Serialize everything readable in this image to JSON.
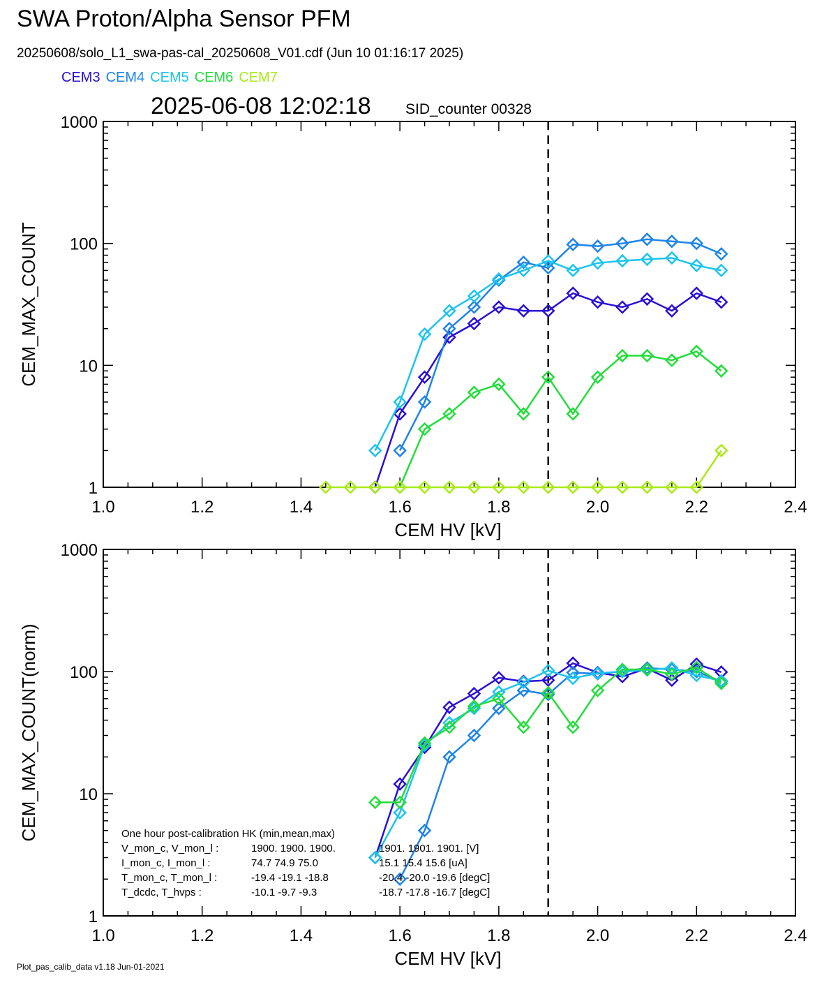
{
  "header": {
    "title": "SWA Proton/Alpha Sensor PFM",
    "file_info": "20250608/solo_L1_swa-pas-cal_20250608_V01.cdf  (Jun 10 01:16:17 2025)",
    "timestamp": "2025-06-08 12:02:18",
    "sid_counter": "SID_counter 00328"
  },
  "legend": [
    {
      "label": "CEM3",
      "color": "#2a0fd6"
    },
    {
      "label": "CEM4",
      "color": "#1f84e8"
    },
    {
      "label": "CEM5",
      "color": "#1cc4ee"
    },
    {
      "label": "CEM6",
      "color": "#22dd3a"
    },
    {
      "label": "CEM7",
      "color": "#a8ea16"
    }
  ],
  "footer": "Plot_pas_calib_data v1.18 Jun-01-2021",
  "chart_data": [
    {
      "type": "line",
      "scale_y": "log",
      "xlabel": "CEM HV [kV]",
      "ylabel": "CEM_MAX_COUNT",
      "xlim": [
        1.0,
        2.4
      ],
      "ylim": [
        1,
        1000
      ],
      "x_ticks": [
        "1.0",
        "1.2",
        "1.4",
        "1.6",
        "1.8",
        "2.0",
        "2.2",
        "2.4"
      ],
      "y_ticks": [
        "1",
        "10",
        "100",
        "1000"
      ],
      "marker": "diamond",
      "vline_x": 1.9,
      "vline_style": "dashed",
      "series": [
        {
          "name": "CEM3",
          "color": "#2a0fd6",
          "points": [
            [
              1.55,
              1
            ],
            [
              1.6,
              4
            ],
            [
              1.65,
              8
            ],
            [
              1.7,
              17
            ],
            [
              1.75,
              22
            ],
            [
              1.8,
              30
            ],
            [
              1.85,
              28
            ],
            [
              1.9,
              28
            ],
            [
              1.95,
              39
            ],
            [
              2.0,
              33
            ],
            [
              2.05,
              30
            ],
            [
              2.1,
              35
            ],
            [
              2.15,
              28
            ],
            [
              2.2,
              39
            ],
            [
              2.25,
              33
            ]
          ]
        },
        {
          "name": "CEM4",
          "color": "#1f84e8",
          "points": [
            [
              1.6,
              2
            ],
            [
              1.65,
              5
            ],
            [
              1.7,
              20
            ],
            [
              1.75,
              30
            ],
            [
              1.8,
              50
            ],
            [
              1.85,
              70
            ],
            [
              1.9,
              63
            ],
            [
              1.95,
              98
            ],
            [
              2.0,
              95
            ],
            [
              2.05,
              100
            ],
            [
              2.1,
              108
            ],
            [
              2.15,
              104
            ],
            [
              2.2,
              100
            ],
            [
              2.25,
              82
            ]
          ]
        },
        {
          "name": "CEM5",
          "color": "#1cc4ee",
          "points": [
            [
              1.55,
              2
            ],
            [
              1.6,
              5
            ],
            [
              1.65,
              18
            ],
            [
              1.7,
              28
            ],
            [
              1.75,
              37
            ],
            [
              1.8,
              51
            ],
            [
              1.85,
              60
            ],
            [
              1.9,
              72
            ],
            [
              1.95,
              60
            ],
            [
              2.0,
              69
            ],
            [
              2.05,
              72
            ],
            [
              2.1,
              74
            ],
            [
              2.15,
              76
            ],
            [
              2.2,
              66
            ],
            [
              2.25,
              60
            ]
          ]
        },
        {
          "name": "CEM6",
          "color": "#22dd3a",
          "points": [
            [
              1.6,
              1
            ],
            [
              1.65,
              3
            ],
            [
              1.7,
              4
            ],
            [
              1.75,
              6
            ],
            [
              1.8,
              7
            ],
            [
              1.85,
              4
            ],
            [
              1.9,
              8
            ],
            [
              1.95,
              4
            ],
            [
              2.0,
              8
            ],
            [
              2.05,
              12
            ],
            [
              2.1,
              12
            ],
            [
              2.15,
              11
            ],
            [
              2.2,
              13
            ],
            [
              2.25,
              9
            ]
          ]
        },
        {
          "name": "CEM7",
          "color": "#a8ea16",
          "points": [
            [
              1.45,
              1
            ],
            [
              1.5,
              1
            ],
            [
              1.55,
              1
            ],
            [
              1.6,
              1
            ],
            [
              1.65,
              1
            ],
            [
              1.7,
              1
            ],
            [
              1.75,
              1
            ],
            [
              1.8,
              1
            ],
            [
              1.85,
              1
            ],
            [
              1.9,
              1
            ],
            [
              1.95,
              1
            ],
            [
              2.0,
              1
            ],
            [
              2.05,
              1
            ],
            [
              2.1,
              1
            ],
            [
              2.15,
              1
            ],
            [
              2.2,
              1
            ],
            [
              2.25,
              2
            ]
          ]
        }
      ]
    },
    {
      "type": "line",
      "scale_y": "log",
      "xlabel": "CEM HV [kV]",
      "ylabel": "CEM_MAX_COUNT(norm)",
      "xlim": [
        1.0,
        2.4
      ],
      "ylim": [
        1,
        1000
      ],
      "x_ticks": [
        "1.0",
        "1.2",
        "1.4",
        "1.6",
        "1.8",
        "2.0",
        "2.2",
        "2.4"
      ],
      "y_ticks": [
        "1",
        "10",
        "100",
        "1000"
      ],
      "marker": "diamond",
      "vline_x": 1.9,
      "vline_style": "dashed",
      "series": [
        {
          "name": "CEM3",
          "color": "#2a0fd6",
          "points": [
            [
              1.55,
              3
            ],
            [
              1.6,
              12
            ],
            [
              1.65,
              24
            ],
            [
              1.7,
              51
            ],
            [
              1.75,
              66
            ],
            [
              1.8,
              89
            ],
            [
              1.85,
              83
            ],
            [
              1.9,
              85
            ],
            [
              1.95,
              117
            ],
            [
              2.0,
              98
            ],
            [
              2.05,
              91
            ],
            [
              2.1,
              106
            ],
            [
              2.15,
              85
            ],
            [
              2.2,
              115
            ],
            [
              2.25,
              99
            ]
          ]
        },
        {
          "name": "CEM4",
          "color": "#1f84e8",
          "points": [
            [
              1.6,
              2
            ],
            [
              1.65,
              5
            ],
            [
              1.7,
              20
            ],
            [
              1.75,
              30
            ],
            [
              1.8,
              50
            ],
            [
              1.85,
              70
            ],
            [
              1.9,
              65
            ],
            [
              1.95,
              98
            ],
            [
              2.0,
              96
            ],
            [
              2.05,
              100
            ],
            [
              2.1,
              107
            ],
            [
              2.15,
              104
            ],
            [
              2.2,
              100
            ],
            [
              2.25,
              83
            ]
          ]
        },
        {
          "name": "CEM5",
          "color": "#1cc4ee",
          "points": [
            [
              1.55,
              3
            ],
            [
              1.6,
              7
            ],
            [
              1.65,
              25
            ],
            [
              1.7,
              38
            ],
            [
              1.75,
              50
            ],
            [
              1.8,
              68
            ],
            [
              1.85,
              82
            ],
            [
              1.9,
              102
            ],
            [
              1.95,
              88
            ],
            [
              2.0,
              97
            ],
            [
              2.05,
              100
            ],
            [
              2.1,
              103
            ],
            [
              2.15,
              107
            ],
            [
              2.2,
              93
            ],
            [
              2.25,
              84
            ]
          ]
        },
        {
          "name": "CEM6",
          "color": "#22dd3a",
          "points": [
            [
              1.55,
              8.5
            ],
            [
              1.6,
              8.5
            ],
            [
              1.65,
              26
            ],
            [
              1.7,
              35
            ],
            [
              1.75,
              52
            ],
            [
              1.8,
              60
            ],
            [
              1.85,
              35
            ],
            [
              1.9,
              67
            ],
            [
              1.95,
              35
            ],
            [
              2.0,
              70
            ],
            [
              2.05,
              104
            ],
            [
              2.1,
              104
            ],
            [
              2.15,
              95
            ],
            [
              2.2,
              108
            ],
            [
              2.25,
              80
            ]
          ]
        }
      ],
      "annotation": {
        "title": "One hour post-calibration HK (min,mean,max)",
        "rows": [
          {
            "label": "V_mon_c, V_mon_l :",
            "c": "1900.  1900.  1900.",
            "l": "1901.   1901.  1901. [V]"
          },
          {
            "label": "I_mon_c,  I_mon_l :",
            "c": "74.7   74.9   75.0",
            "l": "15.1   15.4   15.6  [uA]"
          },
          {
            "label": "T_mon_c, T_mon_l :",
            "c": "-19.4  -19.1  -18.8",
            "l": "-20.4  -20.0  -19.6  [degC]"
          },
          {
            "label": "T_dcdc,    T_hvps :",
            "c": "-10.1   -9.7   -9.3",
            "l": "-18.7  -17.8  -16.7  [degC]"
          }
        ]
      }
    }
  ]
}
